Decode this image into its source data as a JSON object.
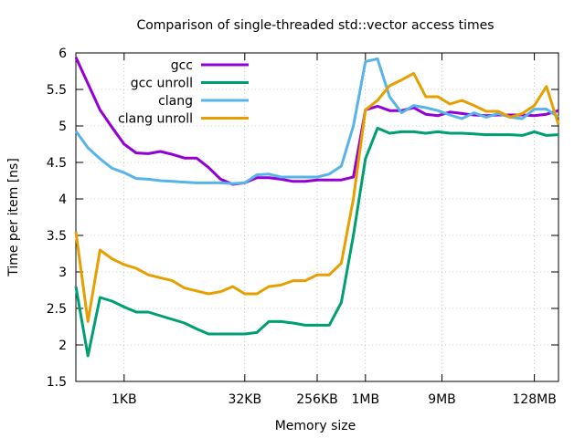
{
  "chart_data": {
    "type": "line",
    "title": "Comparison of single-threaded std::vector access times",
    "xlabel": "Memory size",
    "ylabel": "Time per item [ns]",
    "x_scale": "log2",
    "x_unit": "bytes",
    "xlim": [
      256,
      268435456
    ],
    "ylim": [
      1.5,
      6
    ],
    "yticks": [
      1.5,
      2,
      2.5,
      3,
      3.5,
      4,
      4.5,
      5,
      5.5,
      6
    ],
    "xticks": [
      {
        "value": 1024,
        "label": "1KB"
      },
      {
        "value": 32768,
        "label": "32KB"
      },
      {
        "value": 262144,
        "label": "256KB"
      },
      {
        "value": 1048576,
        "label": "1MB"
      },
      {
        "value": 9437184,
        "label": "9MB"
      },
      {
        "value": 134217728,
        "label": "128MB"
      }
    ],
    "grid": true,
    "legend_position": "top-left",
    "series": [
      {
        "name": "gcc",
        "color": "#9400d3",
        "x": [
          256,
          362,
          512,
          724,
          1024,
          1448,
          2048,
          2896,
          4096,
          5793,
          8192,
          11585,
          16384,
          23170,
          32768,
          46341,
          65536,
          92682,
          131072,
          185364,
          262144,
          370728,
          524288,
          741455,
          1048576,
          1482910,
          2097152,
          2965821,
          4194304,
          5931642,
          8388608,
          11863283,
          16777216,
          23726566,
          33554432,
          47453133,
          67108864,
          94906266,
          134217728,
          189812531,
          268435456
        ],
        "y": [
          5.94,
          5.58,
          5.22,
          4.98,
          4.75,
          4.63,
          4.62,
          4.65,
          4.61,
          4.56,
          4.56,
          4.43,
          4.27,
          4.2,
          4.22,
          4.29,
          4.29,
          4.27,
          4.24,
          4.24,
          4.26,
          4.26,
          4.26,
          4.3,
          5.22,
          5.27,
          5.21,
          5.21,
          5.25,
          5.16,
          5.14,
          5.19,
          5.17,
          5.15,
          5.14,
          5.15,
          5.15,
          5.15,
          5.14,
          5.16,
          5.21
        ]
      },
      {
        "name": "gcc unroll",
        "color": "#009e73",
        "x": [
          256,
          362,
          512,
          724,
          1024,
          1448,
          2048,
          2896,
          4096,
          5793,
          8192,
          11585,
          16384,
          23170,
          32768,
          46341,
          65536,
          92682,
          131072,
          185364,
          262144,
          370728,
          524288,
          741455,
          1048576,
          1482910,
          2097152,
          2965821,
          4194304,
          5931642,
          8388608,
          11863283,
          16777216,
          23726566,
          33554432,
          47453133,
          67108864,
          94906266,
          134217728,
          189812531,
          268435456
        ],
        "y": [
          2.8,
          1.85,
          2.65,
          2.6,
          2.52,
          2.45,
          2.45,
          2.4,
          2.35,
          2.3,
          2.22,
          2.15,
          2.15,
          2.15,
          2.15,
          2.17,
          2.32,
          2.32,
          2.3,
          2.27,
          2.27,
          2.27,
          2.58,
          3.5,
          4.55,
          4.97,
          4.9,
          4.92,
          4.92,
          4.9,
          4.92,
          4.9,
          4.9,
          4.89,
          4.88,
          4.88,
          4.88,
          4.87,
          4.92,
          4.87,
          4.88
        ]
      },
      {
        "name": "clang",
        "color": "#56b4e9",
        "x": [
          256,
          362,
          512,
          724,
          1024,
          1448,
          2048,
          2896,
          4096,
          5793,
          8192,
          11585,
          16384,
          23170,
          32768,
          46341,
          65536,
          92682,
          131072,
          185364,
          262144,
          370728,
          524288,
          741455,
          1048576,
          1482910,
          2097152,
          2965821,
          4194304,
          5931642,
          8388608,
          11863283,
          16777216,
          23726566,
          33554432,
          47453133,
          67108864,
          94906266,
          134217728,
          189812531,
          268435456
        ],
        "y": [
          4.93,
          4.7,
          4.55,
          4.42,
          4.36,
          4.28,
          4.27,
          4.25,
          4.24,
          4.23,
          4.22,
          4.22,
          4.22,
          4.21,
          4.22,
          4.33,
          4.34,
          4.3,
          4.3,
          4.3,
          4.3,
          4.34,
          4.45,
          5.0,
          5.88,
          5.92,
          5.4,
          5.18,
          5.28,
          5.25,
          5.21,
          5.15,
          5.1,
          5.18,
          5.12,
          5.17,
          5.12,
          5.1,
          5.23,
          5.23,
          5.12
        ]
      },
      {
        "name": "clang unroll",
        "color": "#e69f00",
        "x": [
          256,
          362,
          512,
          724,
          1024,
          1448,
          2048,
          2896,
          4096,
          5793,
          8192,
          11585,
          16384,
          23170,
          32768,
          46341,
          65536,
          92682,
          131072,
          185364,
          262144,
          370728,
          524288,
          741455,
          1048576,
          1482910,
          2097152,
          2965821,
          4194304,
          5931642,
          8388608,
          11863283,
          16777216,
          23726566,
          33554432,
          47453133,
          67108864,
          94906266,
          134217728,
          189812531,
          268435456
        ],
        "y": [
          3.55,
          2.32,
          3.3,
          3.18,
          3.1,
          3.05,
          2.96,
          2.92,
          2.88,
          2.78,
          2.74,
          2.7,
          2.73,
          2.8,
          2.7,
          2.7,
          2.8,
          2.82,
          2.88,
          2.88,
          2.96,
          2.96,
          3.12,
          4.0,
          5.22,
          5.35,
          5.55,
          5.63,
          5.72,
          5.4,
          5.4,
          5.3,
          5.35,
          5.28,
          5.2,
          5.2,
          5.12,
          5.17,
          5.28,
          5.54,
          5.02
        ]
      }
    ]
  }
}
